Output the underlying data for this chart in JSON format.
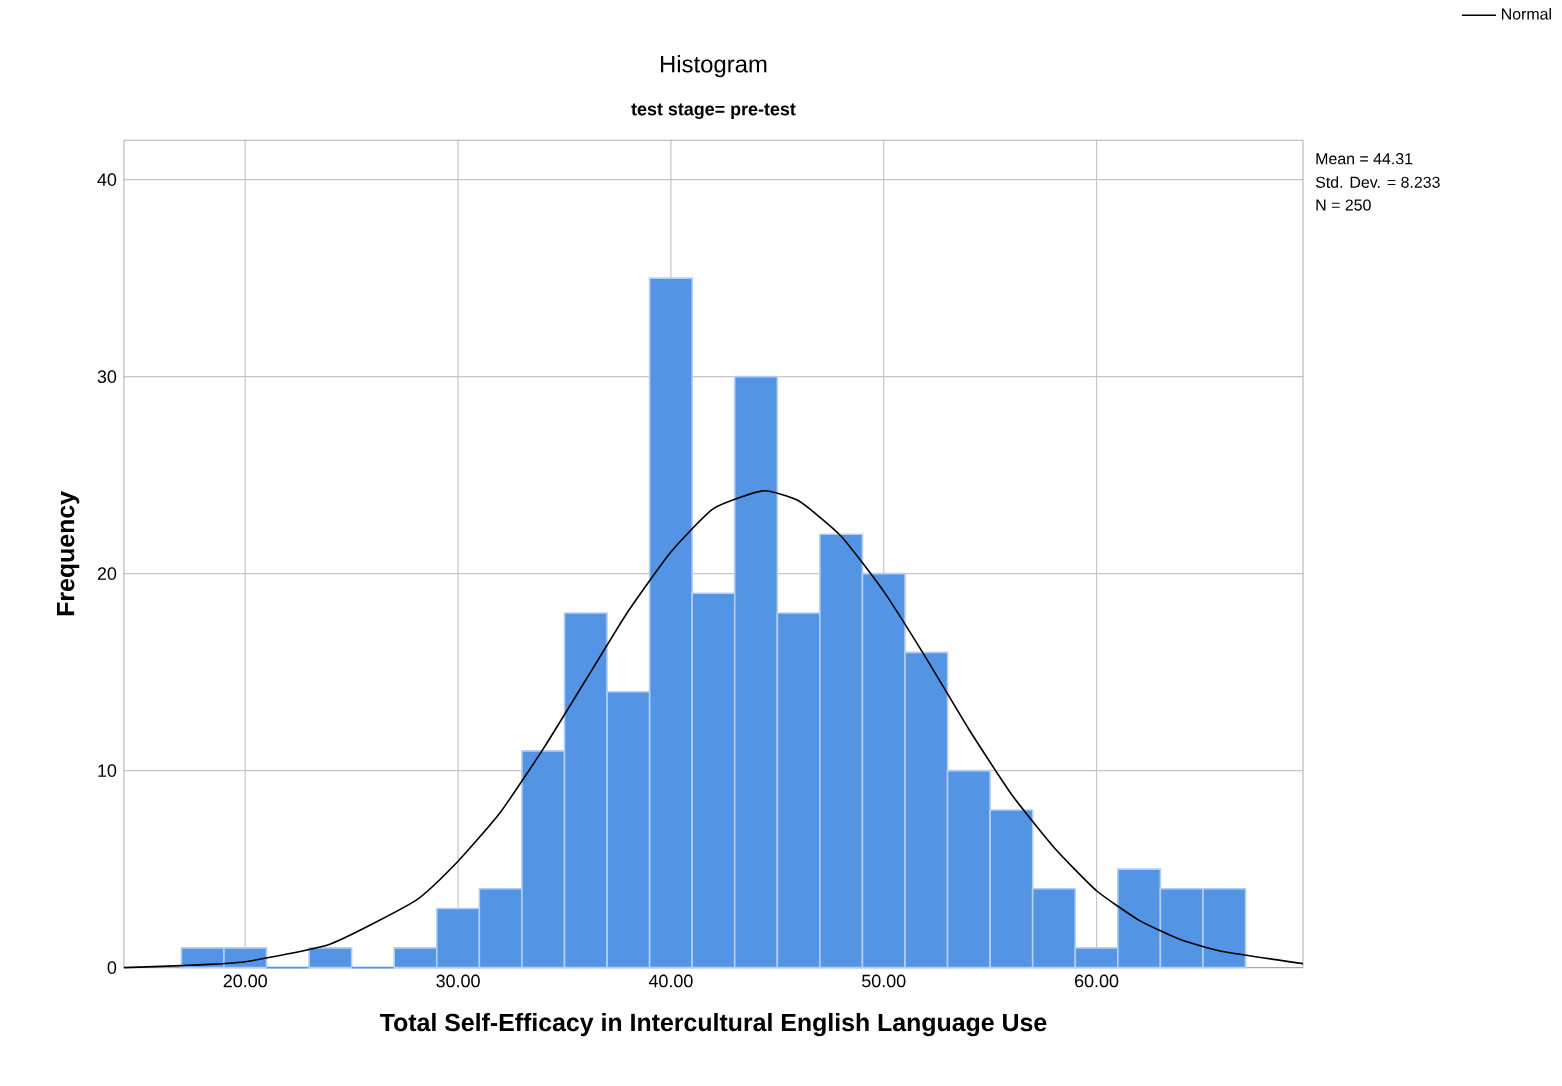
{
  "chart_data": {
    "type": "histogram",
    "title": "Histogram",
    "subtitle": "test stage= pre-test",
    "xlabel": "Total Self-Efficacy in Intercultural English Language Use",
    "ylabel": "Frequency",
    "bins": [
      17,
      19,
      21,
      23,
      25,
      27,
      29,
      31,
      33,
      35,
      37,
      39,
      41,
      43,
      45,
      47,
      49,
      51,
      53,
      55,
      57,
      59,
      61,
      63,
      65,
      67
    ],
    "values": [
      1,
      1,
      0,
      1,
      0,
      1,
      3,
      4,
      11,
      18,
      14,
      35,
      19,
      30,
      18,
      22,
      20,
      16,
      10,
      8,
      4,
      1,
      5,
      4,
      4
    ],
    "color": "#5494e4",
    "series": [
      {
        "type": "line",
        "name": "Normal",
        "color": "#000000",
        "x": [
          14.3,
          17,
          20,
          24,
          28,
          30,
          32,
          34,
          36,
          38,
          40,
          42,
          44.31,
          46,
          48,
          50,
          52,
          54,
          56,
          58,
          60,
          62,
          64,
          66,
          69.7
        ],
        "values": [
          0,
          0.1,
          0.3,
          1.2,
          3.4,
          5.4,
          7.9,
          11.1,
          14.6,
          18.1,
          21.1,
          23.3,
          24.2,
          23.7,
          21.9,
          19.1,
          15.7,
          12.1,
          8.8,
          6.1,
          3.9,
          2.4,
          1.4,
          0.8,
          0.2
        ]
      }
    ],
    "annotations": [
      "Mean = 44.31",
      "Std. Dev. = 8.233",
      "N = 250"
    ],
    "xlim": [
      14.3,
      69.7
    ],
    "ylim": [
      0,
      42
    ],
    "xticks": [
      {
        "value": 20,
        "label": "20.00"
      },
      {
        "value": 30,
        "label": "30.00"
      },
      {
        "value": 40,
        "label": "40.00"
      },
      {
        "value": 50,
        "label": "50.00"
      },
      {
        "value": 60,
        "label": "60.00"
      }
    ],
    "yticks": [
      0,
      10,
      20,
      30,
      40
    ],
    "grid": true,
    "legend": "top right"
  }
}
